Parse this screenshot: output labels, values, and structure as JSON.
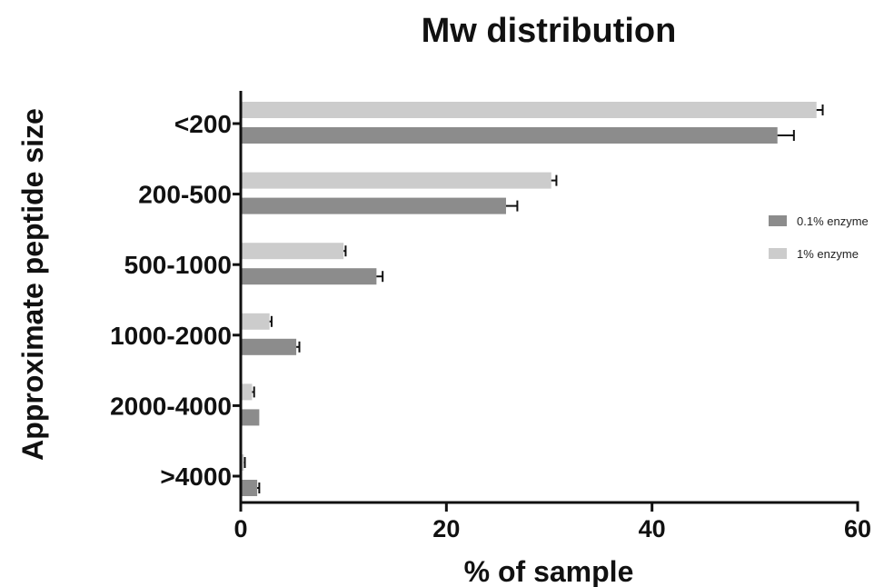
{
  "chart_data": {
    "type": "bar",
    "orientation": "horizontal",
    "title": "Mw distribution",
    "xlabel": "% of sample",
    "ylabel": "Approximate peptide size",
    "categories": [
      "<200",
      "200-500",
      "500-1000",
      "1000-2000",
      "2000-4000",
      ">4000"
    ],
    "xlim": [
      0,
      60
    ],
    "xticks": [
      "0",
      "20",
      "40",
      "60"
    ],
    "series": [
      {
        "name": "0.1% enzyme",
        "color": "#8c8c8c",
        "values": [
          52.2,
          25.8,
          13.2,
          5.4,
          1.8,
          1.6
        ],
        "errors": [
          1.6,
          1.1,
          0.6,
          0.3,
          0.0,
          0.2
        ]
      },
      {
        "name": "1% enzyme",
        "color": "#cccccc",
        "values": [
          56.0,
          30.2,
          10.0,
          2.8,
          1.1,
          0.3
        ],
        "errors": [
          0.6,
          0.5,
          0.2,
          0.2,
          0.2,
          0.1
        ]
      }
    ],
    "legend_position": "right",
    "grid": false
  }
}
